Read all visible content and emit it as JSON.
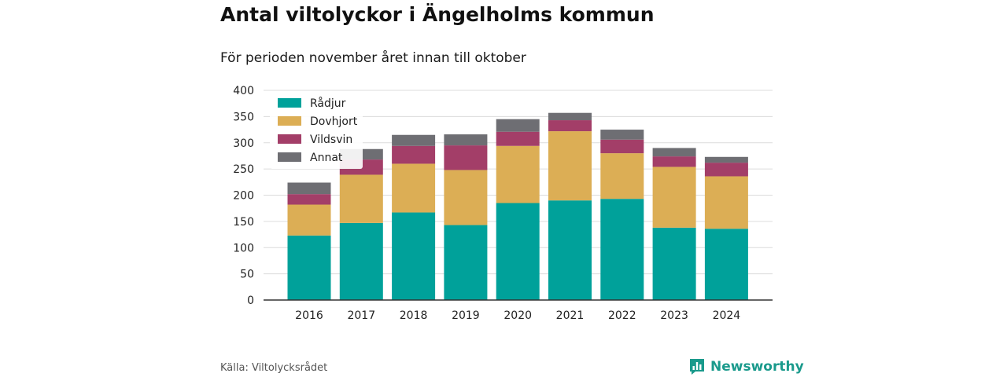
{
  "header": {
    "title": "Antal viltolyckor i Ängelholms kommun",
    "subtitle": "För perioden november året innan till oktober"
  },
  "footer": {
    "source": "Källa: Viltolycksrådet",
    "brand": "Newsworthy"
  },
  "colors": {
    "Rådjur": "#00a19a",
    "Dovhjort": "#dcae55",
    "Vildsvin": "#a33e68",
    "Annat": "#6e6e73"
  },
  "chart_data": {
    "type": "bar",
    "stacked": true,
    "title": "Antal viltolyckor i Ängelholms kommun",
    "subtitle": "För perioden november året innan till oktober",
    "categories": [
      "2016",
      "2017",
      "2018",
      "2019",
      "2020",
      "2021",
      "2022",
      "2023",
      "2024"
    ],
    "series": [
      {
        "name": "Rådjur",
        "values": [
          123,
          147,
          167,
          143,
          185,
          190,
          193,
          138,
          136
        ]
      },
      {
        "name": "Dovhjort",
        "values": [
          59,
          92,
          93,
          105,
          109,
          132,
          87,
          116,
          100
        ]
      },
      {
        "name": "Vildsvin",
        "values": [
          20,
          29,
          34,
          47,
          27,
          21,
          26,
          20,
          26
        ]
      },
      {
        "name": "Annat",
        "values": [
          22,
          20,
          21,
          21,
          24,
          14,
          19,
          16,
          11
        ]
      }
    ],
    "ylim": [
      0,
      400
    ],
    "yticks": [
      0,
      50,
      100,
      150,
      200,
      250,
      300,
      350,
      400
    ],
    "grid": true,
    "legend": "top-left"
  }
}
